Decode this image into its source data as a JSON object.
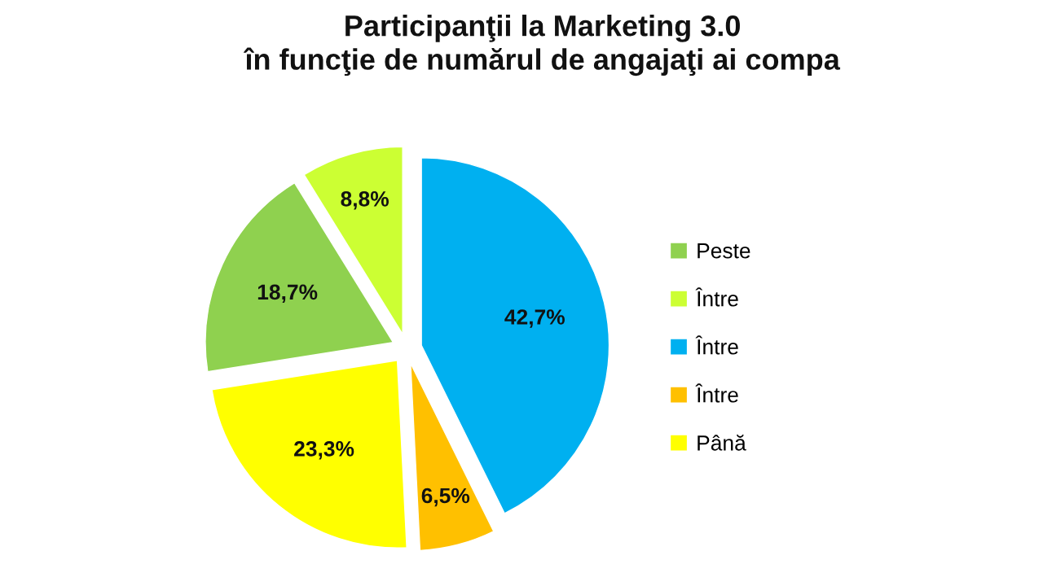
{
  "chart_data": {
    "type": "pie",
    "title": "Participanţii la Marketing 3.0\nîn funcţie de numărul de angajaţi ai compa",
    "categories": [
      "Peste",
      "Între",
      "Între",
      "Între",
      "Până"
    ],
    "values": [
      18.7,
      8.8,
      42.7,
      6.5,
      23.3
    ],
    "value_labels": [
      "18,7%",
      "8,8%",
      "42,7%",
      "6,5%",
      "23,3%"
    ],
    "colors": [
      "#8fd14f",
      "#ccff33",
      "#00b0f0",
      "#ffc000",
      "#ffff00"
    ],
    "legend": "right"
  }
}
